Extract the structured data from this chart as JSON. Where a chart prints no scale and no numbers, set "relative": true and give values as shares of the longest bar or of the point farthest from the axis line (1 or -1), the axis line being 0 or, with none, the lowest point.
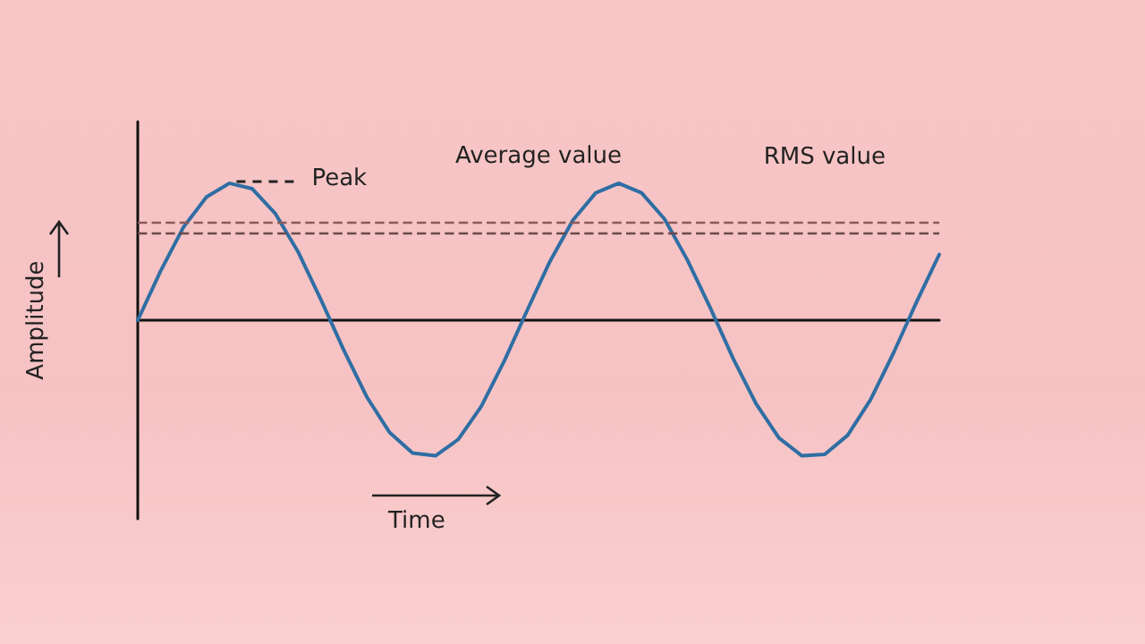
{
  "chart_data": {
    "type": "line",
    "relative": true,
    "xlabel": "Time",
    "ylabel": "Amplitude",
    "categories": [
      null,
      null,
      null,
      null,
      null,
      null,
      null,
      null,
      null,
      null,
      null,
      null,
      null,
      null,
      null,
      null,
      null,
      null,
      null,
      null,
      null,
      null,
      null,
      null,
      null,
      null,
      null,
      null,
      null,
      null,
      null,
      null,
      null,
      null,
      null,
      null
    ],
    "series": [
      {
        "color": "#2f6ea3",
        "values": [
          0,
          0.36,
          0.68,
          0.9,
          1,
          0.96,
          0.78,
          0.5,
          0.15,
          -0.22,
          -0.56,
          -0.82,
          -0.97,
          -0.99,
          -0.87,
          -0.63,
          -0.3,
          0.07,
          0.43,
          0.73,
          0.93,
          1,
          0.93,
          0.74,
          0.44,
          0.09,
          -0.28,
          -0.61,
          -0.86,
          -0.99,
          -0.98,
          -0.84,
          -0.58,
          -0.24,
          0.13,
          0.48
        ]
      }
    ],
    "marker": "none",
    "line_style": "solid",
    "ref_lines": [
      {
        "axis": "y",
        "value": 0.64,
        "label": "Average value",
        "color": "#6b4a4a",
        "line_style": "dashed"
      },
      {
        "axis": "y",
        "value": 0.71,
        "label": "RMS value",
        "color": "#8a5a5a",
        "line_style": "dashed"
      }
    ],
    "annotations": [
      "Peak"
    ]
  }
}
